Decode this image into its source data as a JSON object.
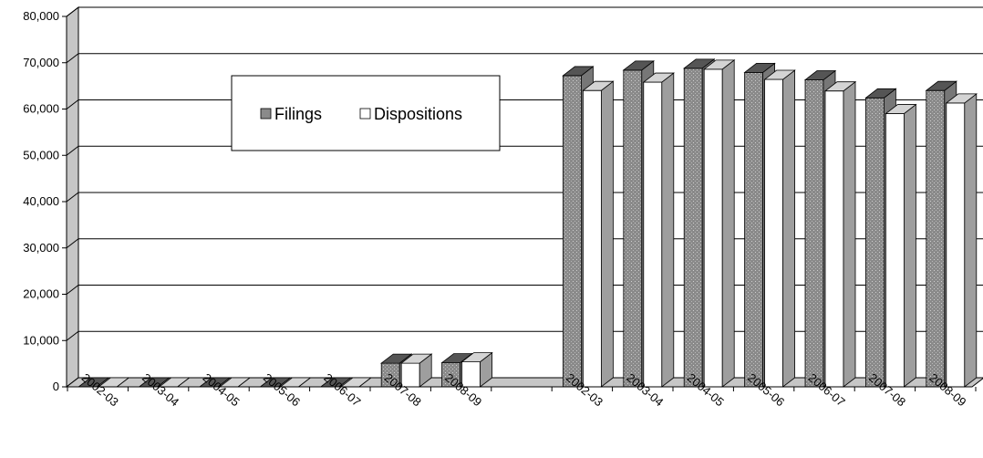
{
  "chart_data": {
    "type": "bar",
    "title": "",
    "xlabel": "",
    "ylabel": "",
    "ylim": [
      0,
      80000
    ],
    "yticks": [
      "0",
      "10,000",
      "20,000",
      "30,000",
      "40,000",
      "50,000",
      "60,000",
      "70,000",
      "80,000"
    ],
    "grid": true,
    "legend_position": "top-center",
    "groups": [
      {
        "categories": [
          "2002-03",
          "2003-04",
          "2004-05",
          "2005-06",
          "2006-07",
          "2007-08",
          "2008-09"
        ],
        "series": [
          {
            "name": "Filings",
            "values": [
              0,
              0,
              0,
              0,
              0,
              5100,
              5200
            ]
          },
          {
            "name": "Dispositions",
            "values": [
              0,
              0,
              0,
              0,
              0,
              5100,
              5400
            ]
          }
        ]
      },
      {
        "categories": [
          "2002-03",
          "2003-04",
          "2004-05",
          "2005-06",
          "2006-07",
          "2007-08",
          "2008-09"
        ],
        "series": [
          {
            "name": "Filings",
            "values": [
              67200,
              68400,
              68800,
              67900,
              66300,
              62400,
              64000
            ]
          },
          {
            "name": "Dispositions",
            "values": [
              64000,
              65800,
              68600,
              66400,
              63900,
              59000,
              61300
            ]
          }
        ]
      }
    ],
    "colors": {
      "filings_front": "#8a8a8a",
      "filings_top": "#555555",
      "filings_side": "#777777",
      "dispositions_front": "#ffffff",
      "dispositions_top": "#d4d4d4",
      "dispositions_side": "#9e9e9e",
      "wall": "#c6c6c6",
      "gridline": "#000000"
    }
  }
}
